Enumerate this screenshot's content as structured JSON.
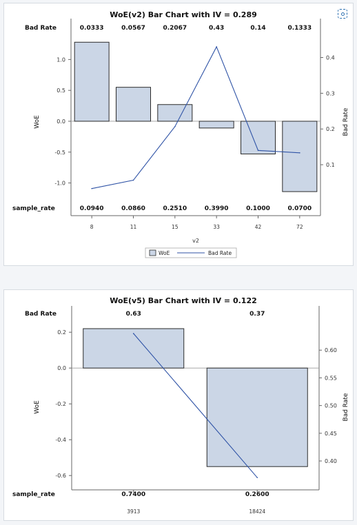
{
  "colors": {
    "bar_fill": "#cbd6e6",
    "bar_stroke": "#2a2a2a",
    "line": "#2f53a6",
    "axis": "#666666"
  },
  "toolbar": {
    "expand_icon": "expand-icon"
  },
  "chart_data": [
    {
      "type": "bar",
      "title": "WoE(v2) Bar Chart with IV = 0.289",
      "xlabel": "v2",
      "ylabel": "WoE",
      "y2label": "Bad Rate",
      "categories": [
        "8",
        "11",
        "15",
        "33",
        "42",
        "72"
      ],
      "ylim": [
        -1.15,
        1.35
      ],
      "y2lim": [
        0.023,
        0.455
      ],
      "yticks": [
        -1.0,
        -0.5,
        0.0,
        0.5,
        1.0
      ],
      "ytick_labels": [
        "-1.0",
        "-0.5",
        "0.0",
        "0.5",
        "1.0"
      ],
      "y2ticks": [
        0.1,
        0.2,
        0.3,
        0.4
      ],
      "y2tick_labels": [
        "0.1",
        "0.2",
        "0.3",
        "0.4"
      ],
      "series": [
        {
          "name": "WoE",
          "kind": "bar",
          "values": [
            1.28,
            0.55,
            0.27,
            -0.11,
            -0.53,
            -1.14
          ]
        },
        {
          "name": "Bad Rate",
          "kind": "line",
          "values": [
            0.0333,
            0.0567,
            0.2067,
            0.43,
            0.14,
            0.1333
          ]
        }
      ],
      "top_row_label": "Bad Rate",
      "top_row": [
        "0.0333",
        "0.0567",
        "0.2067",
        "0.43",
        "0.14",
        "0.1333"
      ],
      "bottom_row_label": "sample_rate",
      "bottom_row": [
        "0.0940",
        "0.0860",
        "0.2510",
        "0.3990",
        "0.1000",
        "0.0700"
      ],
      "legend": [
        "WoE",
        "Bad Rate"
      ],
      "legend_position": "bottom",
      "grid": false
    },
    {
      "type": "bar",
      "title": "WoE(v5) Bar Chart with IV = 0.122",
      "xlabel": "",
      "ylabel": "WoE",
      "y2label": "Bad Rate",
      "categories": [
        "3913",
        "18424"
      ],
      "ylim": [
        -0.63,
        0.27
      ],
      "y2lim": [
        0.364,
        0.655
      ],
      "yticks": [
        -0.6,
        -0.4,
        -0.2,
        0.0,
        0.2
      ],
      "ytick_labels": [
        "-0.6",
        "-0.4",
        "-0.2",
        "0.0",
        "0.2"
      ],
      "y2ticks": [
        0.4,
        0.45,
        0.5,
        0.55,
        0.6
      ],
      "y2tick_labels": [
        "0.40",
        "0.45",
        "0.50",
        "0.55",
        "0.60"
      ],
      "series": [
        {
          "name": "WoE",
          "kind": "bar",
          "values": [
            0.22,
            -0.55
          ]
        },
        {
          "name": "Bad Rate",
          "kind": "line",
          "values": [
            0.63,
            0.37
          ]
        }
      ],
      "top_row_label": "Bad Rate",
      "top_row": [
        "0.63",
        "0.37"
      ],
      "bottom_row_label": "sample_rate",
      "bottom_row": [
        "0.7400",
        "0.2600"
      ],
      "legend": [],
      "grid": false
    }
  ]
}
